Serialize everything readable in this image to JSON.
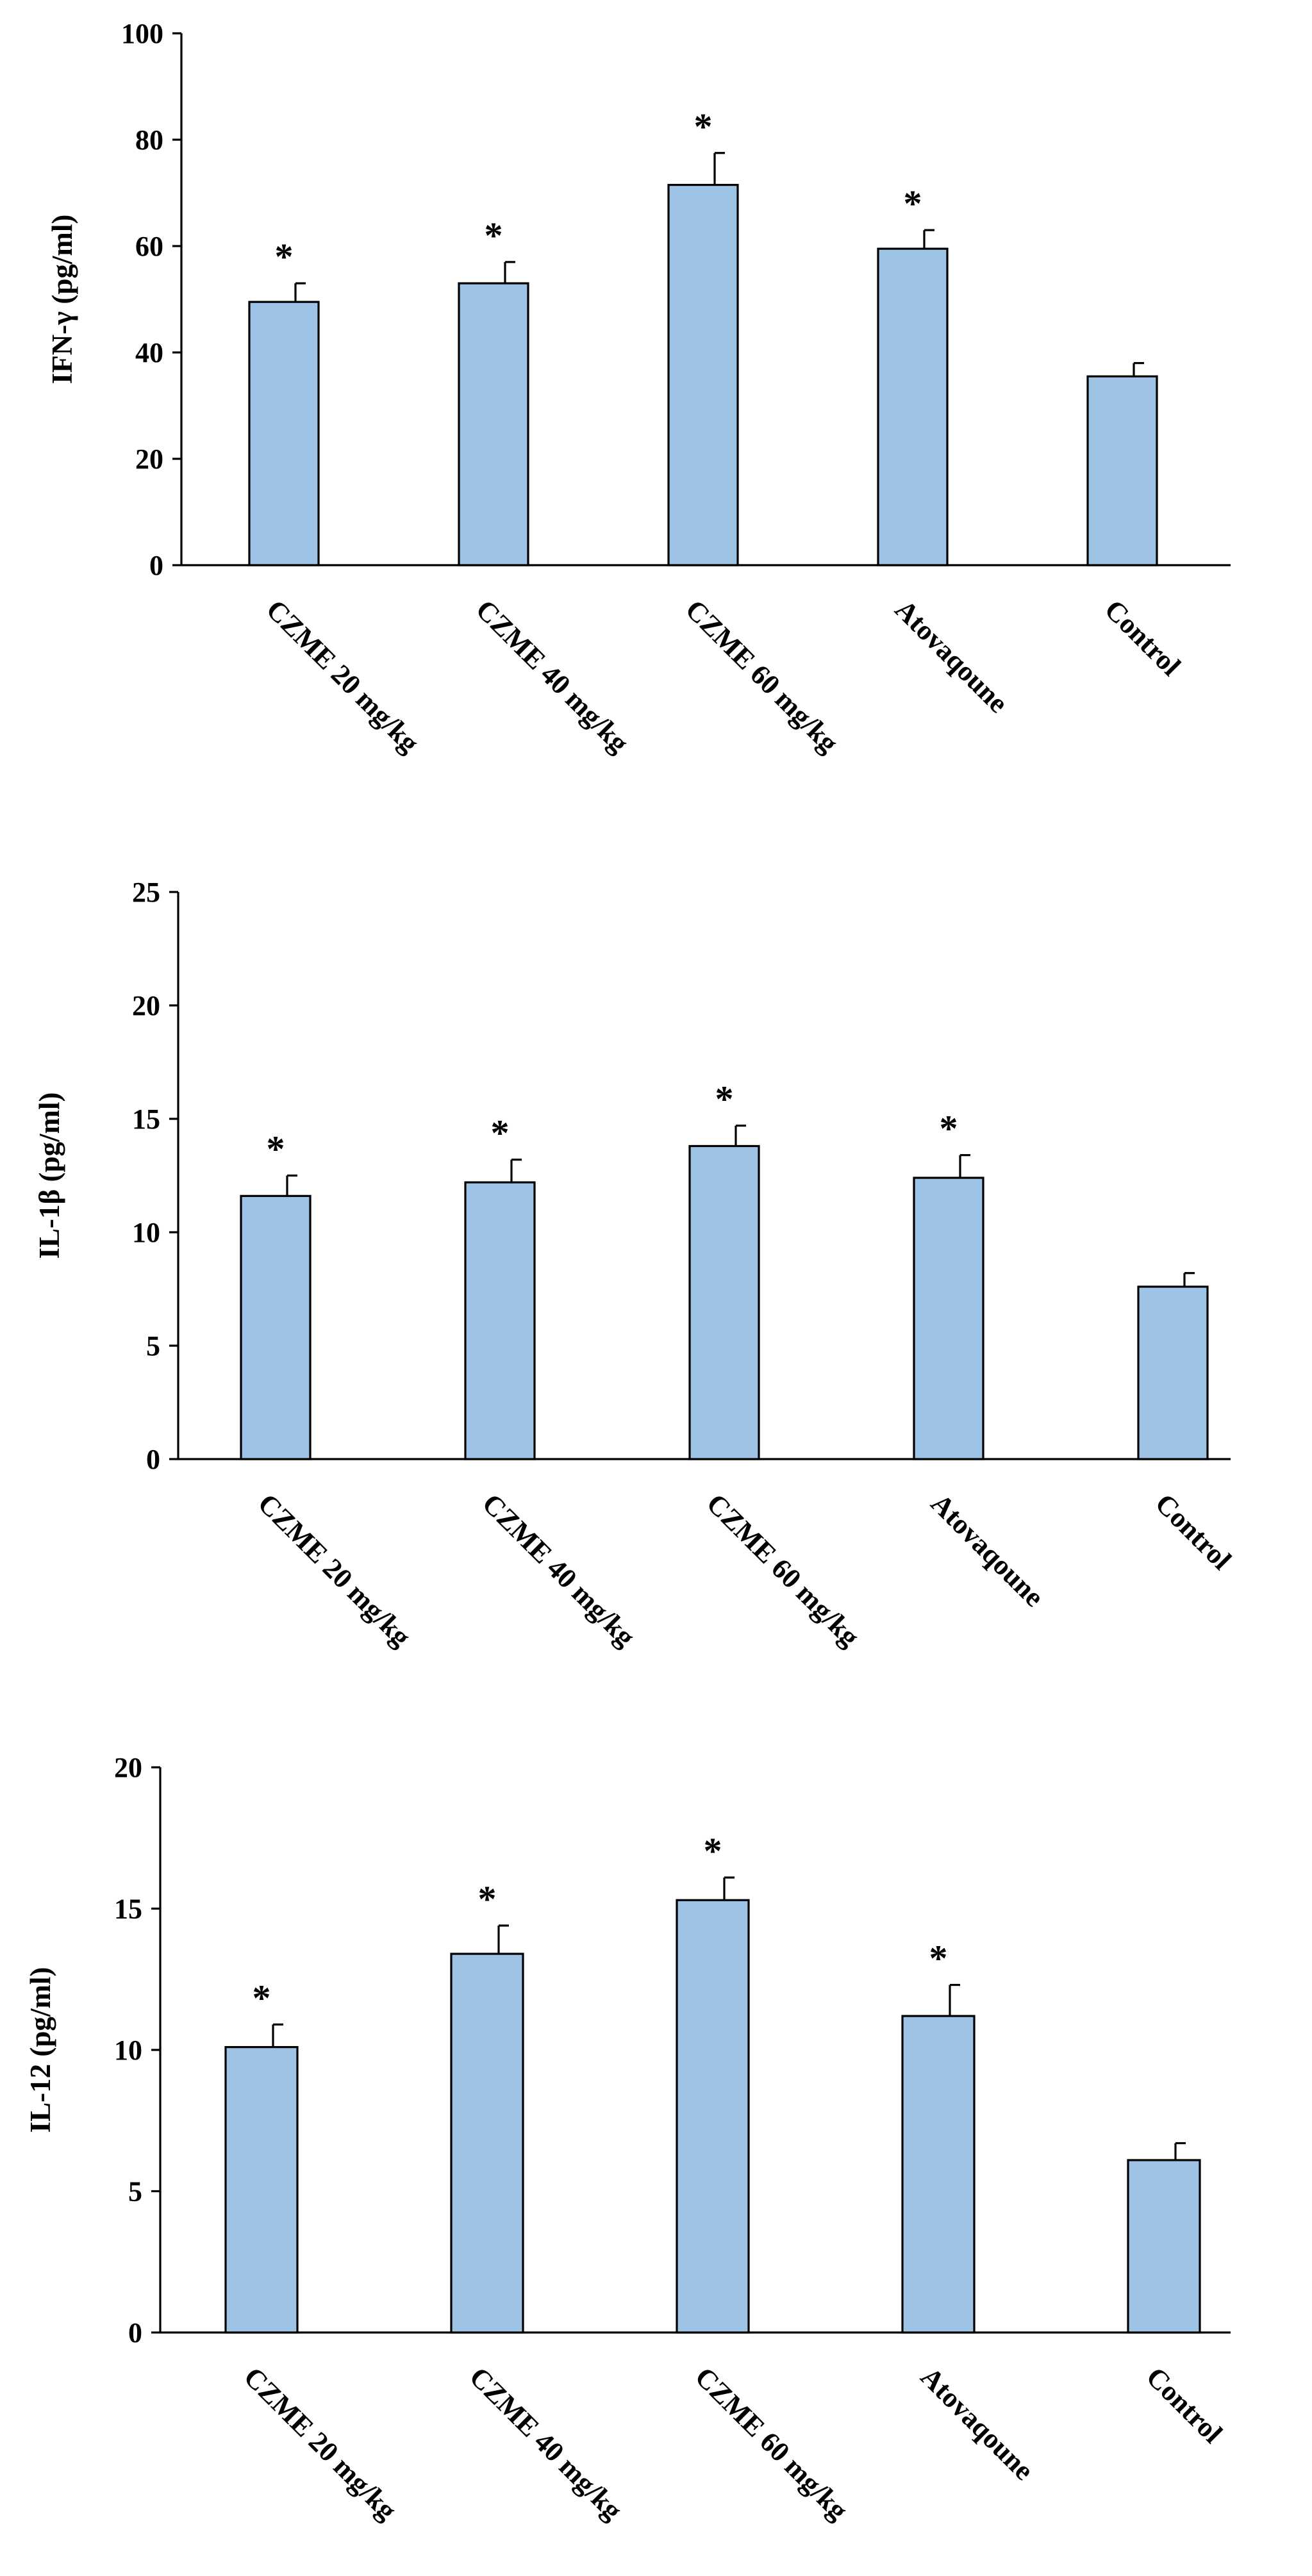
{
  "chart_data": [
    {
      "type": "bar",
      "ylabel": "IFN-γ  (pg/ml)",
      "ylim": [
        0,
        100
      ],
      "yticks": [
        0,
        20,
        40,
        60,
        80,
        100
      ],
      "categories": [
        "CZME 20 mg/kg",
        "CZME 40 mg/kg",
        "CZME 60 mg/kg",
        "Atovaqoune",
        "Control"
      ],
      "values": [
        49.5,
        53,
        71.5,
        59.5,
        35.5
      ],
      "errors": [
        3.5,
        4,
        6,
        3.5,
        2.5
      ],
      "significance": [
        "*",
        "*",
        "*",
        "*",
        ""
      ],
      "bar_color": "#9dc3e6",
      "grid": false,
      "legend": "none"
    },
    {
      "type": "bar",
      "ylabel": "IL-1β  (pg/ml)",
      "ylim": [
        0,
        25
      ],
      "yticks": [
        0,
        5,
        10,
        15,
        20,
        25
      ],
      "categories": [
        "CZME 20 mg/kg",
        "CZME 40 mg/kg",
        "CZME 60 mg/kg",
        "Atovaqoune",
        "Control"
      ],
      "values": [
        11.6,
        12.2,
        13.8,
        12.4,
        7.6
      ],
      "errors": [
        0.9,
        1.0,
        0.9,
        1.0,
        0.6
      ],
      "significance": [
        "*",
        "*",
        "*",
        "*",
        ""
      ],
      "bar_color": "#9dc3e6",
      "grid": false,
      "legend": "none"
    },
    {
      "type": "bar",
      "ylabel": "IL-12  (pg/ml)",
      "ylim": [
        0,
        20
      ],
      "yticks": [
        0,
        5,
        10,
        15,
        20
      ],
      "categories": [
        "CZME 20 mg/kg",
        "CZME 40 mg/kg",
        "CZME 60 mg/kg",
        "Atovaqoune",
        "Control"
      ],
      "values": [
        10.1,
        13.4,
        15.3,
        11.2,
        6.1
      ],
      "errors": [
        0.8,
        1.0,
        0.8,
        1.1,
        0.6
      ],
      "significance": [
        "*",
        "*",
        "*",
        "*",
        ""
      ],
      "bar_color": "#9dc3e6",
      "grid": false,
      "legend": "none"
    }
  ]
}
